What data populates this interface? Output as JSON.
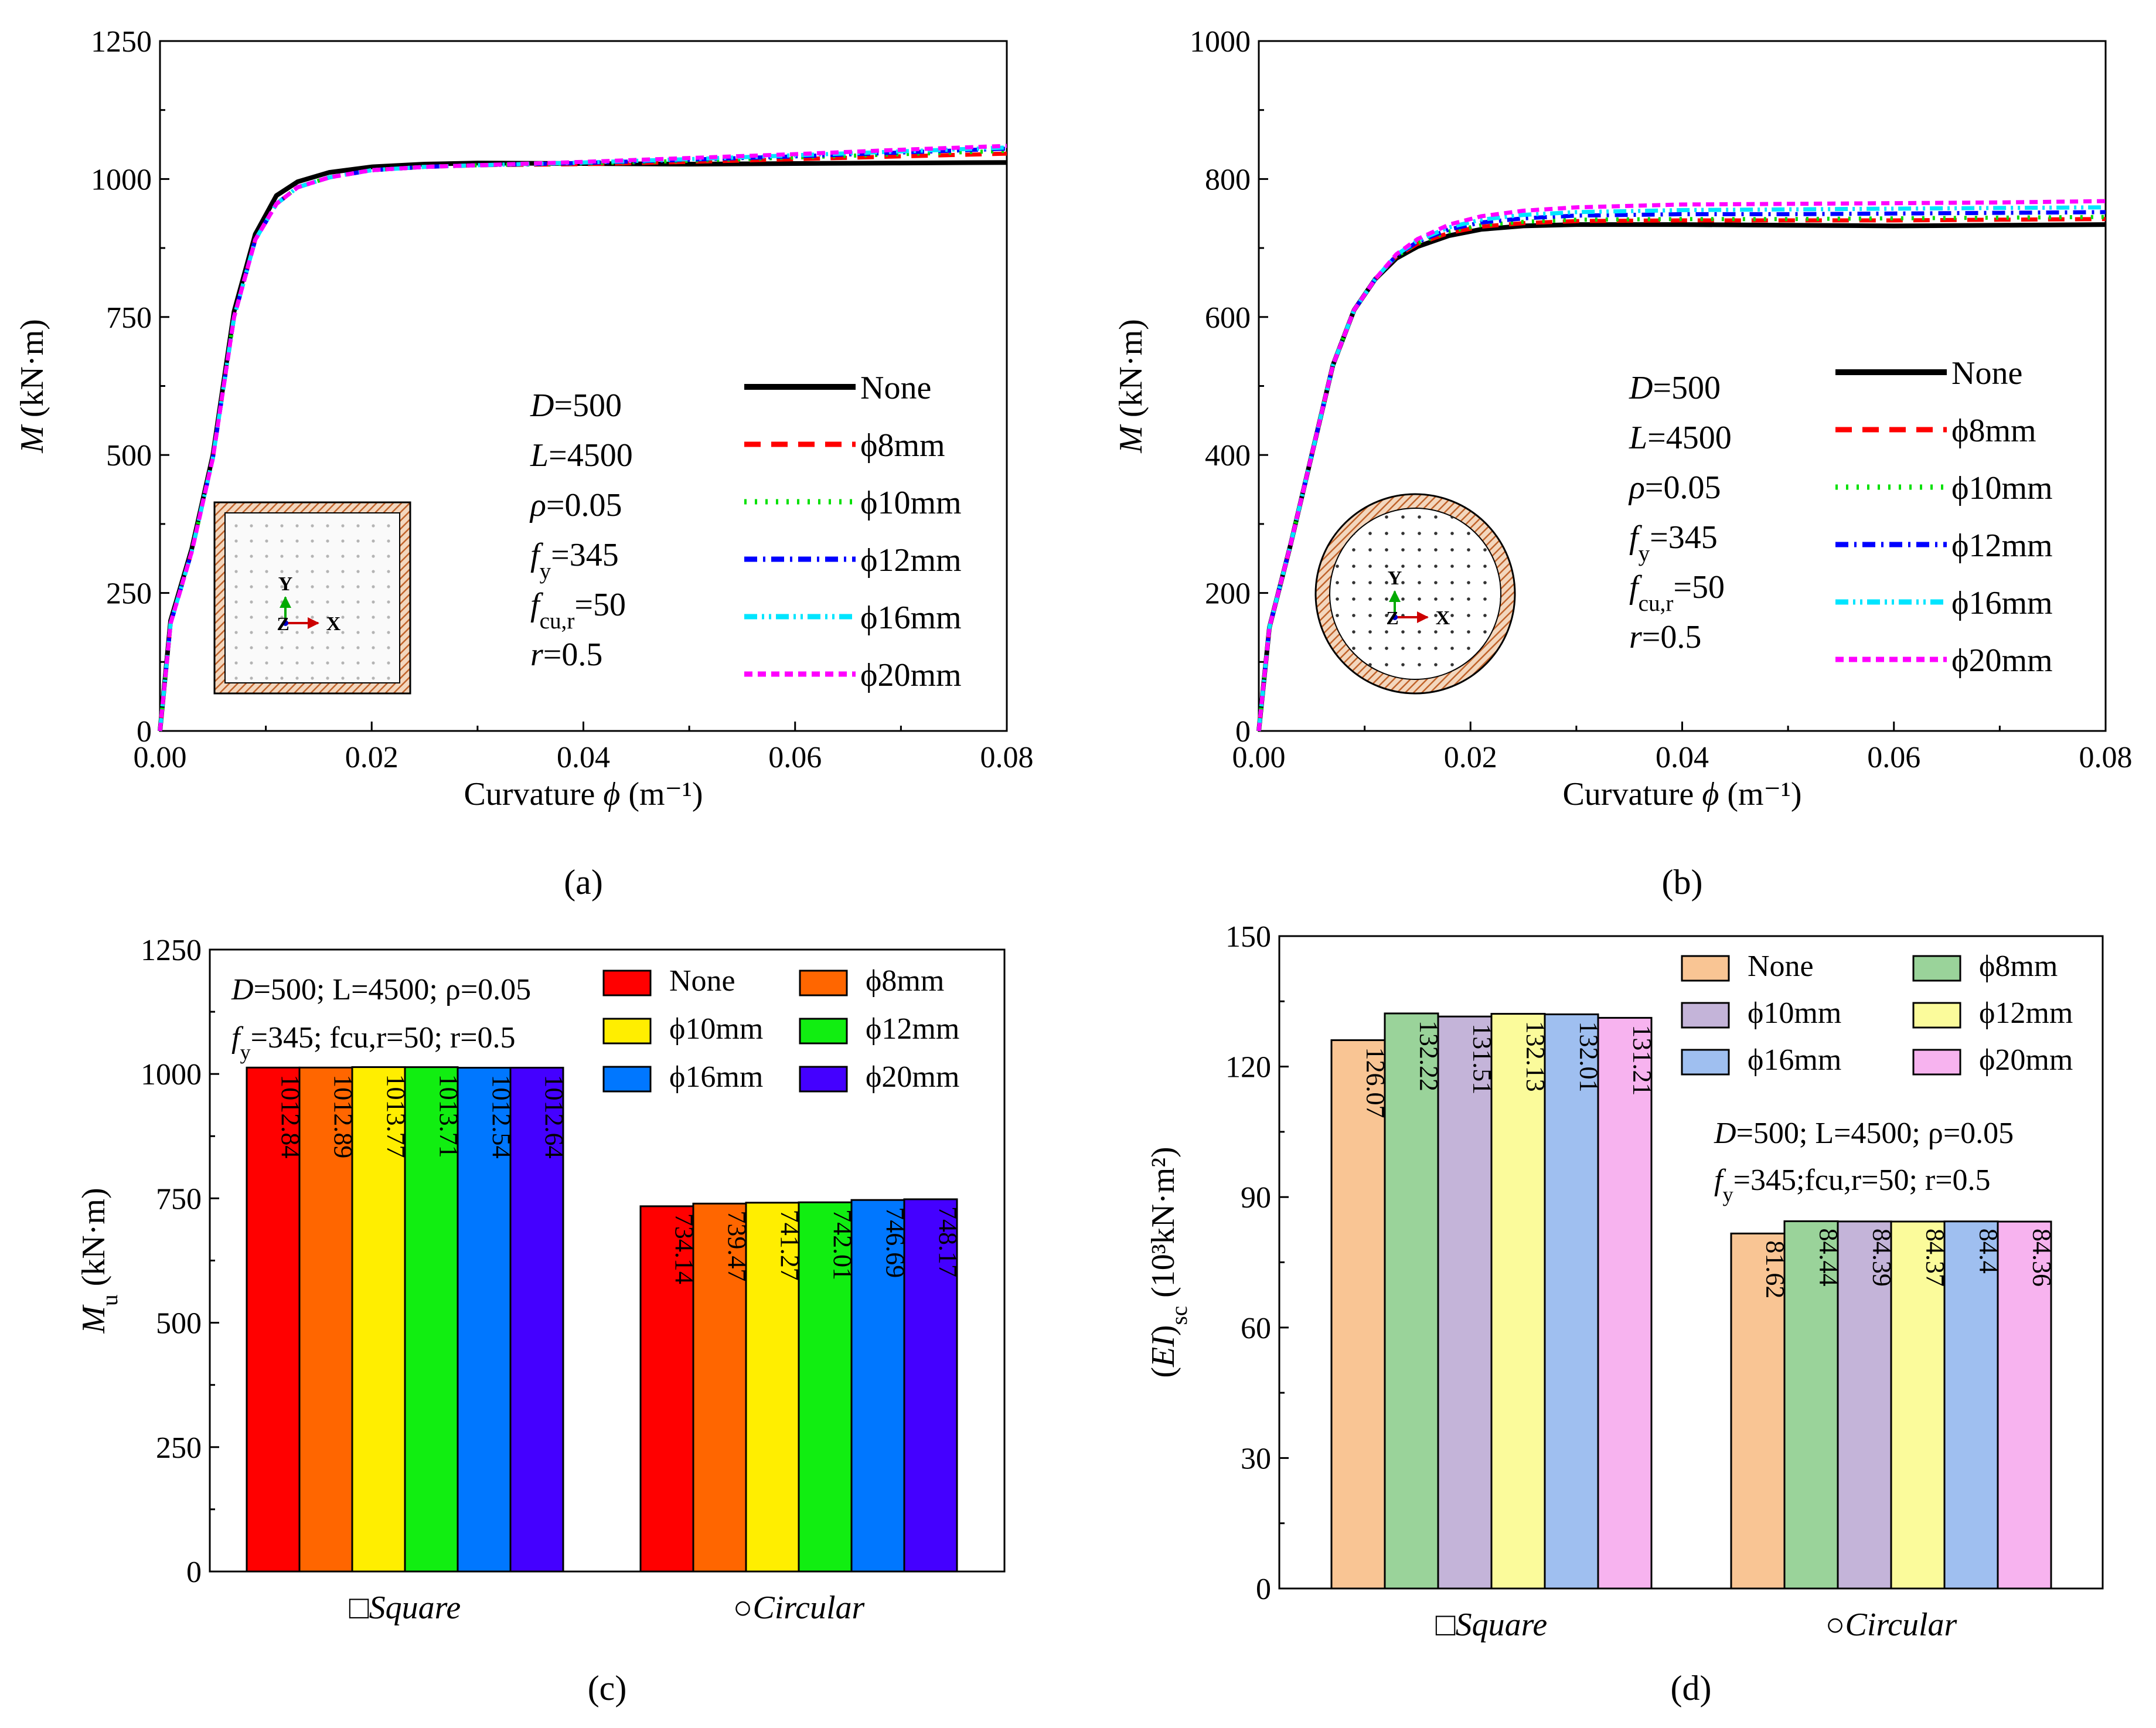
{
  "chart_data": [
    {
      "id": "a",
      "type": "line",
      "panel_label": "(a)",
      "xlabel": "Curvature ϕ (m⁻¹)",
      "ylabel": "M (kN·m)",
      "xlim": [
        0,
        0.08
      ],
      "ylim": [
        0,
        1250
      ],
      "xticks": [
        0,
        0.02,
        0.04,
        0.06,
        0.08
      ],
      "xtick_labels": [
        "0.00",
        "0.02",
        "0.04",
        "0.06",
        "0.08"
      ],
      "yticks": [
        0,
        250,
        500,
        750,
        1000,
        1250
      ],
      "ytick_labels": [
        "0",
        "250",
        "500",
        "750",
        "1000",
        "1250"
      ],
      "params": [
        "D=500",
        "L=4500",
        "ρ=0.05",
        "fy=345",
        "fcu,r=50",
        "r=0.5"
      ],
      "inset": {
        "section": "square",
        "axis_x": "X",
        "axis_y": "Y",
        "axis_z": "Z"
      },
      "series": [
        {
          "name": "None",
          "color": "#000000",
          "dash": "solid",
          "x": [
            0,
            0.001,
            0.003,
            0.005,
            0.007,
            0.009,
            0.011,
            0.013,
            0.016,
            0.02,
            0.025,
            0.03,
            0.04,
            0.05,
            0.06,
            0.07,
            0.08
          ],
          "y": [
            0,
            200,
            330,
            500,
            760,
            900,
            970,
            995,
            1012,
            1022,
            1027,
            1029,
            1028,
            1027,
            1028,
            1029,
            1030
          ]
        },
        {
          "name": "ϕ8mm",
          "color": "#ff0000",
          "dash": "long",
          "x": [
            0,
            0.001,
            0.003,
            0.005,
            0.007,
            0.009,
            0.011,
            0.013,
            0.016,
            0.02,
            0.025,
            0.03,
            0.04,
            0.05,
            0.06,
            0.07,
            0.08
          ],
          "y": [
            0,
            195,
            325,
            495,
            750,
            890,
            955,
            985,
            1003,
            1016,
            1022,
            1025,
            1027,
            1031,
            1036,
            1041,
            1046
          ]
        },
        {
          "name": "ϕ10mm",
          "color": "#00e000",
          "dash": "dot",
          "x": [
            0,
            0.001,
            0.003,
            0.005,
            0.007,
            0.009,
            0.011,
            0.013,
            0.016,
            0.02,
            0.025,
            0.03,
            0.04,
            0.05,
            0.06,
            0.07,
            0.08
          ],
          "y": [
            0,
            195,
            325,
            495,
            750,
            890,
            955,
            985,
            1003,
            1016,
            1022,
            1025,
            1028,
            1033,
            1039,
            1045,
            1051
          ]
        },
        {
          "name": "ϕ12mm",
          "color": "#0000ff",
          "dash": "dashdot",
          "x": [
            0,
            0.001,
            0.003,
            0.005,
            0.007,
            0.009,
            0.011,
            0.013,
            0.016,
            0.02,
            0.025,
            0.03,
            0.04,
            0.05,
            0.06,
            0.07,
            0.08
          ],
          "y": [
            0,
            195,
            325,
            495,
            750,
            890,
            955,
            985,
            1003,
            1016,
            1022,
            1025,
            1029,
            1035,
            1041,
            1048,
            1055
          ]
        },
        {
          "name": "ϕ16mm",
          "color": "#00e5ff",
          "dash": "dashdotdot",
          "x": [
            0,
            0.001,
            0.003,
            0.005,
            0.007,
            0.009,
            0.011,
            0.013,
            0.016,
            0.02,
            0.025,
            0.03,
            0.04,
            0.05,
            0.06,
            0.07,
            0.08
          ],
          "y": [
            0,
            195,
            325,
            495,
            750,
            890,
            955,
            985,
            1003,
            1016,
            1022,
            1025,
            1030,
            1036,
            1043,
            1050,
            1057
          ]
        },
        {
          "name": "ϕ20mm",
          "color": "#ff00ff",
          "dash": "short",
          "x": [
            0,
            0.001,
            0.003,
            0.005,
            0.007,
            0.009,
            0.011,
            0.013,
            0.016,
            0.02,
            0.025,
            0.03,
            0.04,
            0.05,
            0.06,
            0.07,
            0.08
          ],
          "y": [
            0,
            195,
            325,
            495,
            750,
            890,
            955,
            985,
            1003,
            1016,
            1022,
            1025,
            1031,
            1038,
            1045,
            1053,
            1060
          ]
        }
      ]
    },
    {
      "id": "b",
      "type": "line",
      "panel_label": "(b)",
      "xlabel": "Curvature ϕ (m⁻¹)",
      "ylabel": "M (kN·m)",
      "xlim": [
        0,
        0.08
      ],
      "ylim": [
        0,
        1000
      ],
      "xticks": [
        0,
        0.02,
        0.04,
        0.06,
        0.08
      ],
      "xtick_labels": [
        "0.00",
        "0.02",
        "0.04",
        "0.06",
        "0.08"
      ],
      "yticks": [
        0,
        200,
        400,
        600,
        800,
        1000
      ],
      "ytick_labels": [
        "0",
        "200",
        "400",
        "600",
        "800",
        "1000"
      ],
      "params": [
        "D=500",
        "L=4500",
        "ρ=0.05",
        "fy=345",
        "fcu,r=50",
        "r=0.5"
      ],
      "inset": {
        "section": "circular",
        "axis_x": "X",
        "axis_y": "Y",
        "axis_z": "Z"
      },
      "series": [
        {
          "name": "None",
          "color": "#000000",
          "dash": "solid",
          "x": [
            0,
            0.001,
            0.003,
            0.005,
            0.007,
            0.009,
            0.011,
            0.013,
            0.015,
            0.018,
            0.021,
            0.025,
            0.03,
            0.04,
            0.05,
            0.06,
            0.07,
            0.08
          ],
          "y": [
            0,
            150,
            270,
            400,
            530,
            610,
            655,
            685,
            702,
            718,
            727,
            732,
            734,
            734,
            733,
            732,
            733,
            734
          ]
        },
        {
          "name": "ϕ8mm",
          "color": "#ff0000",
          "dash": "long",
          "x": [
            0,
            0.001,
            0.003,
            0.005,
            0.007,
            0.009,
            0.011,
            0.013,
            0.015,
            0.018,
            0.021,
            0.025,
            0.03,
            0.04,
            0.05,
            0.06,
            0.07,
            0.08
          ],
          "y": [
            0,
            150,
            270,
            400,
            530,
            610,
            655,
            688,
            706,
            722,
            731,
            736,
            739,
            740,
            740,
            740,
            741,
            742
          ]
        },
        {
          "name": "ϕ10mm",
          "color": "#00e000",
          "dash": "dot",
          "x": [
            0,
            0.001,
            0.003,
            0.005,
            0.007,
            0.009,
            0.011,
            0.013,
            0.015,
            0.018,
            0.021,
            0.025,
            0.03,
            0.04,
            0.05,
            0.06,
            0.07,
            0.08
          ],
          "y": [
            0,
            150,
            270,
            400,
            530,
            610,
            655,
            688,
            707,
            724,
            733,
            738,
            741,
            742,
            742,
            743,
            744,
            745
          ]
        },
        {
          "name": "ϕ12mm",
          "color": "#0000ff",
          "dash": "dashdot",
          "x": [
            0,
            0.001,
            0.003,
            0.005,
            0.007,
            0.009,
            0.011,
            0.013,
            0.015,
            0.018,
            0.021,
            0.025,
            0.03,
            0.04,
            0.05,
            0.06,
            0.07,
            0.08
          ],
          "y": [
            0,
            150,
            270,
            400,
            530,
            610,
            655,
            689,
            709,
            727,
            737,
            743,
            747,
            749,
            749,
            750,
            751,
            752
          ]
        },
        {
          "name": "ϕ16mm",
          "color": "#00e5ff",
          "dash": "dashdotdot",
          "x": [
            0,
            0.001,
            0.003,
            0.005,
            0.007,
            0.009,
            0.011,
            0.013,
            0.015,
            0.018,
            0.021,
            0.025,
            0.03,
            0.04,
            0.05,
            0.06,
            0.07,
            0.08
          ],
          "y": [
            0,
            150,
            270,
            400,
            530,
            610,
            655,
            690,
            711,
            730,
            741,
            748,
            752,
            755,
            756,
            757,
            758,
            759
          ]
        },
        {
          "name": "ϕ20mm",
          "color": "#ff00ff",
          "dash": "short",
          "x": [
            0,
            0.001,
            0.003,
            0.005,
            0.007,
            0.009,
            0.011,
            0.013,
            0.015,
            0.018,
            0.021,
            0.025,
            0.03,
            0.04,
            0.05,
            0.06,
            0.07,
            0.08
          ],
          "y": [
            0,
            150,
            270,
            400,
            530,
            610,
            655,
            691,
            713,
            734,
            746,
            754,
            759,
            763,
            764,
            765,
            766,
            768
          ]
        }
      ]
    },
    {
      "id": "c",
      "type": "bar",
      "panel_label": "(c)",
      "ylabel": "Mu (kN·m)",
      "ylim": [
        0,
        1250
      ],
      "yticks": [
        0,
        250,
        500,
        750,
        1000,
        1250
      ],
      "ytick_labels": [
        "0",
        "250",
        "500",
        "750",
        "1000",
        "1250"
      ],
      "categories": [
        "□Square",
        "○Circular"
      ],
      "params": [
        "D=500; L=4500; ρ=0.05",
        "fy=345; fcu,r=50; r=0.5"
      ],
      "series": [
        {
          "name": "None",
          "color": "#ff0000",
          "values": [
            1012.84,
            734.14
          ],
          "labels": [
            "1012.84",
            "734.14"
          ]
        },
        {
          "name": "ϕ8mm",
          "color": "#ff6600",
          "values": [
            1012.89,
            739.47
          ],
          "labels": [
            "1012.89",
            "739.47"
          ]
        },
        {
          "name": "ϕ10mm",
          "color": "#ffee00",
          "values": [
            1013.77,
            741.27
          ],
          "labels": [
            "1013.77",
            "741.27"
          ]
        },
        {
          "name": "ϕ12mm",
          "color": "#11ee11",
          "values": [
            1013.71,
            742.01
          ],
          "labels": [
            "1013.71",
            "742.01"
          ]
        },
        {
          "name": "ϕ16mm",
          "color": "#0077ff",
          "values": [
            1012.54,
            746.69
          ],
          "labels": [
            "1012.54",
            "746.69"
          ]
        },
        {
          "name": "ϕ20mm",
          "color": "#4400ff",
          "values": [
            1012.64,
            748.17
          ],
          "labels": [
            "1012.64",
            "748.17"
          ]
        }
      ]
    },
    {
      "id": "d",
      "type": "bar",
      "panel_label": "(d)",
      "ylabel": "(EI)sc (10³kN·m²)",
      "ylim": [
        0,
        150
      ],
      "yticks": [
        0,
        30,
        60,
        90,
        120,
        150
      ],
      "ytick_labels": [
        "0",
        "30",
        "60",
        "90",
        "120",
        "150"
      ],
      "categories": [
        "□Square",
        "○Circular"
      ],
      "params": [
        "D=500; L=4500; ρ=0.05",
        "fy=345;fcu,r=50; r=0.5"
      ],
      "series": [
        {
          "name": "None",
          "color": "#f9c594",
          "values": [
            126.07,
            81.62
          ],
          "labels": [
            "126.07",
            "81.62"
          ]
        },
        {
          "name": "ϕ8mm",
          "color": "#9ad39a",
          "values": [
            132.22,
            84.44
          ],
          "labels": [
            "132.22",
            "84.44"
          ]
        },
        {
          "name": "ϕ10mm",
          "color": "#c4b4d9",
          "values": [
            131.51,
            84.39
          ],
          "labels": [
            "131.51",
            "84.39"
          ]
        },
        {
          "name": "ϕ12mm",
          "color": "#fbfb9b",
          "values": [
            132.13,
            84.37
          ],
          "labels": [
            "132.13",
            "84.37"
          ]
        },
        {
          "name": "ϕ16mm",
          "color": "#9fbff0",
          "values": [
            132.01,
            84.4
          ],
          "labels": [
            "132.01",
            "84.4"
          ]
        },
        {
          "name": "ϕ20mm",
          "color": "#f7b3ef",
          "values": [
            131.21,
            84.36
          ],
          "labels": [
            "131.21",
            "84.36"
          ]
        }
      ]
    }
  ]
}
